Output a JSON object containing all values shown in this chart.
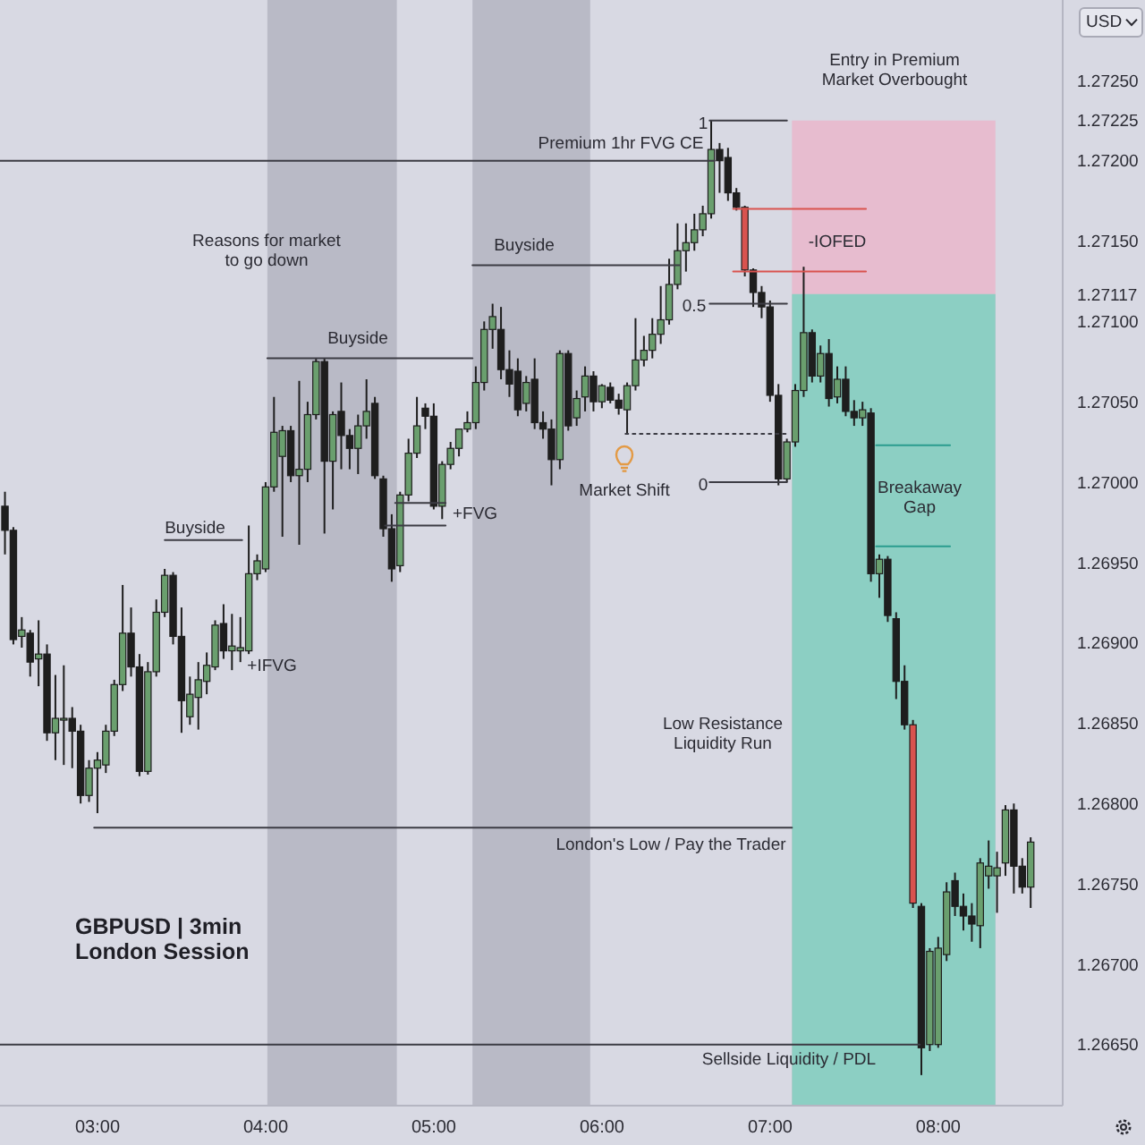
{
  "chart_data": {
    "type": "candlestick",
    "title": "GBPUSD | 3min",
    "subtitle": "London Session",
    "ylabel": "USD",
    "x": [
      2.45,
      2.5,
      2.55,
      2.6,
      2.65,
      2.7,
      2.75,
      2.8,
      2.85,
      2.9,
      2.95,
      3,
      3.05,
      3.1,
      3.15,
      3.2,
      3.25,
      3.3,
      3.35,
      3.4,
      3.45,
      3.5,
      3.55,
      3.6,
      3.65,
      3.7,
      3.75,
      3.8,
      3.85,
      3.9,
      3.95,
      4,
      4.05,
      4.1,
      4.15,
      4.2,
      4.25,
      4.3,
      4.35,
      4.4,
      4.45,
      4.5,
      4.55,
      4.6,
      4.65,
      4.7,
      4.75,
      4.8,
      4.85,
      4.9,
      4.95,
      5,
      5.05,
      5.1,
      5.15,
      5.2,
      5.25,
      5.3,
      5.35,
      5.4,
      5.45,
      5.5,
      5.55,
      5.6,
      5.65,
      5.7,
      5.75,
      5.8,
      5.85,
      5.9,
      5.95,
      6,
      6.05,
      6.1,
      6.15,
      6.2,
      6.25,
      6.3,
      6.35,
      6.4,
      6.45,
      6.5,
      6.55,
      6.6,
      6.65,
      6.7,
      6.75,
      6.8,
      6.85,
      6.9,
      6.95,
      7,
      7.05,
      7.1,
      7.15,
      7.2,
      7.25,
      7.3,
      7.35,
      7.4,
      7.45,
      7.5,
      7.55,
      7.6,
      7.65,
      7.7,
      7.75,
      7.8,
      7.85,
      7.9,
      7.95,
      8,
      8.05,
      8.1,
      8.15,
      8.2,
      8.25,
      8.3,
      8.35,
      8.4,
      8.45,
      8.5,
      8.55
    ],
    "ohlc": [
      [
        1.26985,
        1.26994,
        1.26955,
        1.2697
      ],
      [
        1.2697,
        1.26972,
        1.26899,
        1.26902
      ],
      [
        1.26904,
        1.26916,
        1.26897,
        1.26908
      ],
      [
        1.26906,
        1.26908,
        1.26879,
        1.26888
      ],
      [
        1.2689,
        1.26914,
        1.26873,
        1.26893
      ],
      [
        1.26893,
        1.26899,
        1.26839,
        1.26844
      ],
      [
        1.26844,
        1.2688,
        1.26827,
        1.26853
      ],
      [
        1.26852,
        1.26886,
        1.26824,
        1.26853
      ],
      [
        1.26853,
        1.2686,
        1.26822,
        1.26845
      ],
      [
        1.26845,
        1.26849,
        1.268,
        1.26805
      ],
      [
        1.26805,
        1.26827,
        1.26801,
        1.26822
      ],
      [
        1.26822,
        1.26832,
        1.26794,
        1.26827
      ],
      [
        1.26824,
        1.26849,
        1.26819,
        1.26845
      ],
      [
        1.26845,
        1.26877,
        1.26842,
        1.26874
      ],
      [
        1.26874,
        1.26936,
        1.2687,
        1.26906
      ],
      [
        1.26906,
        1.26922,
        1.26879,
        1.26885
      ],
      [
        1.26885,
        1.26893,
        1.26817,
        1.2682
      ],
      [
        1.2682,
        1.26888,
        1.26818,
        1.26882
      ],
      [
        1.26882,
        1.26927,
        1.26879,
        1.26919
      ],
      [
        1.26919,
        1.26946,
        1.26916,
        1.26942
      ],
      [
        1.26942,
        1.26944,
        1.26899,
        1.26904
      ],
      [
        1.26904,
        1.26922,
        1.26844,
        1.26864
      ],
      [
        1.26854,
        1.26879,
        1.26849,
        1.26868
      ],
      [
        1.26866,
        1.26888,
        1.26846,
        1.26877
      ],
      [
        1.26876,
        1.26894,
        1.26868,
        1.26886
      ],
      [
        1.26885,
        1.26914,
        1.26883,
        1.26911
      ],
      [
        1.26912,
        1.26924,
        1.2689,
        1.26895
      ],
      [
        1.26895,
        1.26918,
        1.26883,
        1.26898
      ],
      [
        1.26895,
        1.26916,
        1.26888,
        1.26897
      ],
      [
        1.26895,
        1.26973,
        1.26893,
        1.26943
      ],
      [
        1.26943,
        1.26955,
        1.26939,
        1.26951
      ],
      [
        1.26946,
        1.27,
        1.26944,
        1.26997
      ],
      [
        1.26997,
        1.27053,
        1.26994,
        1.27031
      ],
      [
        1.27016,
        1.27035,
        1.26966,
        1.27032
      ],
      [
        1.27032,
        1.27035,
        1.27,
        1.27004
      ],
      [
        1.27004,
        1.27063,
        1.26961,
        1.27008
      ],
      [
        1.27008,
        1.2705,
        1.27,
        1.27042
      ],
      [
        1.27042,
        1.27077,
        1.27039,
        1.27075
      ],
      [
        1.27075,
        1.27077,
        1.26968,
        1.27013
      ],
      [
        1.27013,
        1.27044,
        1.26983,
        1.27042
      ],
      [
        1.27044,
        1.27062,
        1.27008,
        1.27029
      ],
      [
        1.27029,
        1.27033,
        1.27008,
        1.27021
      ],
      [
        1.27021,
        1.27042,
        1.27005,
        1.27035
      ],
      [
        1.27035,
        1.27064,
        1.27027,
        1.27044
      ],
      [
        1.27049,
        1.27053,
        1.27002,
        1.27004
      ],
      [
        1.27002,
        1.27004,
        1.26966,
        1.26971
      ],
      [
        1.26971,
        1.2698,
        1.26938,
        1.26946
      ],
      [
        1.26948,
        1.26994,
        1.26944,
        1.26992
      ],
      [
        1.26992,
        1.27027,
        1.26988,
        1.27018
      ],
      [
        1.27018,
        1.27053,
        1.27015,
        1.27035
      ],
      [
        1.27046,
        1.27049,
        1.27033,
        1.27041
      ],
      [
        1.27041,
        1.27049,
        1.26983,
        1.26985
      ],
      [
        1.26985,
        1.27013,
        1.26977,
        1.27011
      ],
      [
        1.27011,
        1.27025,
        1.27008,
        1.27021
      ],
      [
        1.27021,
        1.27033,
        1.27016,
        1.27033
      ],
      [
        1.27033,
        1.27044,
        1.27031,
        1.27037
      ],
      [
        1.27037,
        1.27072,
        1.27033,
        1.27062
      ],
      [
        1.27062,
        1.271,
        1.27057,
        1.27095
      ],
      [
        1.27095,
        1.27111,
        1.27083,
        1.27103
      ],
      [
        1.27095,
        1.27109,
        1.27064,
        1.2707
      ],
      [
        1.2707,
        1.27082,
        1.27053,
        1.27061
      ],
      [
        1.27069,
        1.27077,
        1.27041,
        1.27045
      ],
      [
        1.27049,
        1.27066,
        1.27044,
        1.27062
      ],
      [
        1.27064,
        1.27077,
        1.27033,
        1.27037
      ],
      [
        1.27037,
        1.27044,
        1.27027,
        1.27033
      ],
      [
        1.27033,
        1.27039,
        1.26998,
        1.27014
      ],
      [
        1.27014,
        1.27082,
        1.27008,
        1.2708
      ],
      [
        1.2708,
        1.27082,
        1.27032,
        1.27035
      ],
      [
        1.2704,
        1.27057,
        1.27035,
        1.27052
      ],
      [
        1.27053,
        1.27072,
        1.27044,
        1.27066
      ],
      [
        1.27066,
        1.27069,
        1.27044,
        1.2705
      ],
      [
        1.2705,
        1.27061,
        1.27046,
        1.2706
      ],
      [
        1.27059,
        1.27062,
        1.27049,
        1.27051
      ],
      [
        1.27051,
        1.27055,
        1.27042,
        1.27046
      ],
      [
        1.27045,
        1.27062,
        1.2703,
        1.2706
      ],
      [
        1.2706,
        1.27102,
        1.27057,
        1.27076
      ],
      [
        1.27076,
        1.27091,
        1.27072,
        1.27082
      ],
      [
        1.27082,
        1.27102,
        1.27077,
        1.27092
      ],
      [
        1.27092,
        1.27122,
        1.27086,
        1.27101
      ],
      [
        1.27101,
        1.27139,
        1.27098,
        1.27123
      ],
      [
        1.27123,
        1.27161,
        1.2712,
        1.27144
      ],
      [
        1.27144,
        1.27161,
        1.27131,
        1.27149
      ],
      [
        1.27149,
        1.27167,
        1.27144,
        1.27157
      ],
      [
        1.27157,
        1.27172,
        1.27153,
        1.27167
      ],
      [
        1.27167,
        1.27225,
        1.27164,
        1.27207
      ],
      [
        1.27207,
        1.27211,
        1.2718,
        1.272
      ],
      [
        1.27202,
        1.27208,
        1.27175,
        1.2718
      ],
      [
        1.2718,
        1.27183,
        1.27169,
        1.27171
      ],
      [
        1.27171,
        1.27172,
        1.27128,
        1.27132
      ],
      [
        1.27132,
        1.27133,
        1.27109,
        1.27118
      ],
      [
        1.27118,
        1.27122,
        1.27102,
        1.27109
      ],
      [
        1.27109,
        1.27113,
        1.2705,
        1.27054
      ],
      [
        1.27054,
        1.27061,
        1.26998,
        1.27002
      ],
      [
        1.27002,
        1.27027,
        1.27,
        1.27025
      ],
      [
        1.27025,
        1.27061,
        1.27022,
        1.27057
      ],
      [
        1.27057,
        1.27134,
        1.27053,
        1.27093
      ],
      [
        1.27093,
        1.27095,
        1.27062,
        1.27066
      ],
      [
        1.27066,
        1.27085,
        1.27062,
        1.2708
      ],
      [
        1.2708,
        1.27089,
        1.27047,
        1.27052
      ],
      [
        1.27053,
        1.27072,
        1.27049,
        1.27064
      ],
      [
        1.27064,
        1.27072,
        1.27041,
        1.27044
      ],
      [
        1.27044,
        1.27051,
        1.27035,
        1.2704
      ],
      [
        1.2704,
        1.2705,
        1.27035,
        1.27045
      ],
      [
        1.27043,
        1.27046,
        1.26938,
        1.26943
      ],
      [
        1.26943,
        1.26955,
        1.26928,
        1.26952
      ],
      [
        1.26952,
        1.26954,
        1.26913,
        1.26917
      ],
      [
        1.26915,
        1.26919,
        1.26865,
        1.26876
      ],
      [
        1.26876,
        1.26886,
        1.26846,
        1.26849
      ],
      [
        1.26849,
        1.26852,
        1.26735,
        1.26738
      ],
      [
        1.26736,
        1.26738,
        1.26631,
        1.26648
      ],
      [
        1.2665,
        1.2671,
        1.26646,
        1.26708
      ],
      [
        1.2665,
        1.26717,
        1.26648,
        1.2671
      ],
      [
        1.26706,
        1.26751,
        1.26702,
        1.26745
      ],
      [
        1.26752,
        1.26757,
        1.2673,
        1.26736
      ],
      [
        1.26736,
        1.26744,
        1.26721,
        1.2673
      ],
      [
        1.2673,
        1.26738,
        1.26714,
        1.26725
      ],
      [
        1.26724,
        1.26766,
        1.2671,
        1.26763
      ],
      [
        1.26755,
        1.26777,
        1.26747,
        1.26761
      ],
      [
        1.26755,
        1.2677,
        1.26732,
        1.2676
      ],
      [
        1.26763,
        1.26799,
        1.26755,
        1.26796
      ],
      [
        1.26796,
        1.268,
        1.26744,
        1.26761
      ],
      [
        1.26761,
        1.26766,
        1.26744,
        1.26748
      ],
      [
        1.26748,
        1.26779,
        1.26735,
        1.26776
      ]
    ],
    "colors": [
      "#1e1e1e",
      "#1e1e1e",
      "#6a9f6e",
      "#1e1e1e",
      "#6a9f6e",
      "#1e1e1e",
      "#6a9f6e",
      "#6a9f6e",
      "#1e1e1e",
      "#1e1e1e",
      "#6a9f6e",
      "#6a9f6e",
      "#6a9f6e",
      "#6a9f6e",
      "#6a9f6e",
      "#1e1e1e",
      "#1e1e1e",
      "#6a9f6e",
      "#6a9f6e",
      "#6a9f6e",
      "#1e1e1e",
      "#1e1e1e",
      "#6a9f6e",
      "#6a9f6e",
      "#6a9f6e",
      "#6a9f6e",
      "#1e1e1e",
      "#6a9f6e",
      "#6a9f6e",
      "#6a9f6e",
      "#6a9f6e",
      "#6a9f6e",
      "#6a9f6e",
      "#6a9f6e",
      "#1e1e1e",
      "#6a9f6e",
      "#6a9f6e",
      "#6a9f6e",
      "#1e1e1e",
      "#6a9f6e",
      "#1e1e1e",
      "#1e1e1e",
      "#6a9f6e",
      "#6a9f6e",
      "#1e1e1e",
      "#1e1e1e",
      "#1e1e1e",
      "#6a9f6e",
      "#6a9f6e",
      "#6a9f6e",
      "#1e1e1e",
      "#1e1e1e",
      "#6a9f6e",
      "#6a9f6e",
      "#6a9f6e",
      "#6a9f6e",
      "#6a9f6e",
      "#6a9f6e",
      "#6a9f6e",
      "#1e1e1e",
      "#1e1e1e",
      "#1e1e1e",
      "#6a9f6e",
      "#1e1e1e",
      "#1e1e1e",
      "#1e1e1e",
      "#6a9f6e",
      "#1e1e1e",
      "#6a9f6e",
      "#6a9f6e",
      "#1e1e1e",
      "#6a9f6e",
      "#1e1e1e",
      "#1e1e1e",
      "#6a9f6e",
      "#6a9f6e",
      "#6a9f6e",
      "#6a9f6e",
      "#6a9f6e",
      "#6a9f6e",
      "#6a9f6e",
      "#6a9f6e",
      "#6a9f6e",
      "#6a9f6e",
      "#6a9f6e",
      "#1e1e1e",
      "#1e1e1e",
      "#1e1e1e",
      "#d9534f",
      "#1e1e1e",
      "#1e1e1e",
      "#1e1e1e",
      "#1e1e1e",
      "#6a9f6e",
      "#6a9f6e",
      "#6a9f6e",
      "#1e1e1e",
      "#6a9f6e",
      "#1e1e1e",
      "#6a9f6e",
      "#1e1e1e",
      "#1e1e1e",
      "#6a9f6e",
      "#1e1e1e",
      "#6a9f6e",
      "#1e1e1e",
      "#1e1e1e",
      "#1e1e1e",
      "#d9534f",
      "#1e1e1e",
      "#6a9f6e",
      "#6a9f6e",
      "#6a9f6e",
      "#1e1e1e",
      "#1e1e1e",
      "#1e1e1e",
      "#6a9f6e",
      "#6a9f6e",
      "#6a9f6e",
      "#6a9f6e",
      "#1e1e1e",
      "#1e1e1e",
      "#6a9f6e"
    ],
    "series": [
      {
        "type": "area",
        "color": "#e7bccf",
        "x": [
          7.13,
          8.34
        ],
        "values": [
          1.27225,
          1.27225
        ]
      },
      {
        "type": "area",
        "color": "#8ccfc3",
        "x": [
          7.13,
          8.34
        ],
        "values": [
          1.27117,
          1.27117
        ]
      },
      {
        "type": "line",
        "color": "#3c3c44",
        "x": [
          2.42,
          6.67
        ],
        "values": [
          1.272,
          1.272
        ]
      },
      {
        "type": "line",
        "color": "#3c3c44",
        "x": [
          3.4,
          3.86
        ],
        "values": [
          1.26964,
          1.26964
        ]
      },
      {
        "type": "line",
        "color": "#3c3c44",
        "x": [
          4.01,
          5.23
        ],
        "values": [
          1.27077,
          1.27077
        ]
      },
      {
        "type": "line",
        "color": "#3c3c44",
        "x": [
          5.23,
          6.46
        ],
        "values": [
          1.27135,
          1.27135
        ]
      },
      {
        "type": "line",
        "color": "#3c3c44",
        "x": [
          4.77,
          5.07
        ],
        "values": [
          1.26987,
          1.26987
        ]
      },
      {
        "type": "line",
        "color": "#3c3c44",
        "x": [
          4.71,
          5.07
        ],
        "values": [
          1.26973,
          1.26973
        ]
      },
      {
        "type": "line",
        "color": "#3c3c44",
        "x": [
          6.64,
          7.1
        ],
        "values": [
          1.27225,
          1.27225
        ]
      },
      {
        "type": "line",
        "color": "#3c3c44",
        "x": [
          6.64,
          7.1
        ],
        "values": [
          1.27111,
          1.27111
        ]
      },
      {
        "type": "line",
        "color": "#3c3c44",
        "x": [
          6.64,
          7.1
        ],
        "values": [
          1.27,
          1.27
        ]
      },
      {
        "type": "line",
        "color": "#3c3c44",
        "x": [
          6.14,
          7.1
        ],
        "values": [
          1.2703,
          1.2703
        ],
        "line_style": "dotted"
      },
      {
        "type": "line",
        "color": "#3c3c44",
        "x": [
          2.98,
          7.13
        ],
        "values": [
          1.26785,
          1.26785
        ]
      },
      {
        "type": "line",
        "color": "#3c3c44",
        "x": [
          2.42,
          7.89
        ],
        "values": [
          1.2665,
          1.2665
        ]
      },
      {
        "type": "line",
        "color": "#2a9d8f",
        "x": [
          7.63,
          8.07
        ],
        "values": [
          1.27023,
          1.27023
        ]
      },
      {
        "type": "line",
        "color": "#2a9d8f",
        "x": [
          7.63,
          8.07
        ],
        "values": [
          1.2696,
          1.2696
        ]
      },
      {
        "type": "line",
        "color": "#d9534f",
        "x": [
          6.78,
          7.57
        ],
        "values": [
          1.2717,
          1.2717
        ]
      },
      {
        "type": "line",
        "color": "#d9534f",
        "x": [
          6.78,
          7.57
        ],
        "values": [
          1.27131,
          1.27131
        ]
      }
    ],
    "bands": [
      {
        "axis": "x",
        "from": 4.01,
        "to": 4.78,
        "color": "#b9bac6"
      },
      {
        "axis": "x",
        "from": 5.23,
        "to": 5.93,
        "color": "#b9bac6"
      }
    ],
    "annotations": [
      "Premium 1hr FVG CE",
      "Reasons for market\nto go down",
      "Buyside",
      "Buyside",
      "Buyside",
      "+FVG",
      "+IFVG",
      "Market Shift",
      "1",
      "0.5",
      "0",
      "-IOFED",
      "Entry in Premium\nMarket Overbought",
      "Breakaway\nGap",
      "Low Resistance\nLiquidity Run",
      "London's Low / Pay the Trader",
      "Sellside Liquidity / PDL"
    ],
    "xlim": [
      2.42,
      8.74
    ],
    "xticks": [
      {
        "value": 3,
        "label": "03:00"
      },
      {
        "value": 4,
        "label": "04:00"
      },
      {
        "value": 5,
        "label": "05:00"
      },
      {
        "value": 6,
        "label": "06:00"
      },
      {
        "value": 7,
        "label": "07:00"
      },
      {
        "value": 8,
        "label": "08:00"
      }
    ],
    "ylim": [
      1.26612,
      1.273
    ],
    "yticks": [
      {
        "value": 1.2665,
        "label": "1.26650"
      },
      {
        "value": 1.267,
        "label": "1.26700"
      },
      {
        "value": 1.2675,
        "label": "1.26750"
      },
      {
        "value": 1.268,
        "label": "1.26800"
      },
      {
        "value": 1.2685,
        "label": "1.26850"
      },
      {
        "value": 1.269,
        "label": "1.26900"
      },
      {
        "value": 1.2695,
        "label": "1.26950"
      },
      {
        "value": 1.27,
        "label": "1.27000"
      },
      {
        "value": 1.2705,
        "label": "1.27050"
      },
      {
        "value": 1.271,
        "label": "1.27100"
      },
      {
        "value": 1.27117,
        "label": "1.27117"
      },
      {
        "value": 1.2715,
        "label": "1.27150"
      },
      {
        "value": 1.272,
        "label": "1.27200"
      },
      {
        "value": 1.27225,
        "label": "1.27225"
      },
      {
        "value": 1.2725,
        "label": "1.27250"
      }
    ]
  }
}
